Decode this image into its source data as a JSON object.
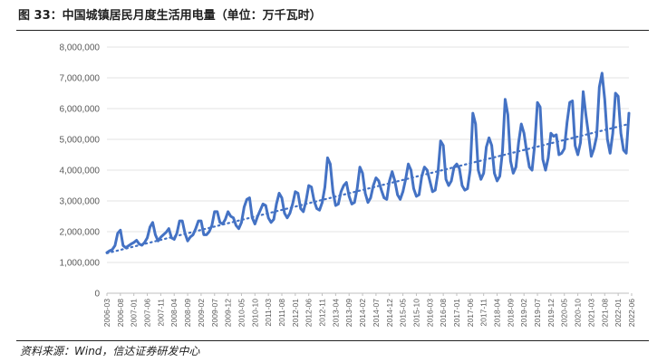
{
  "figure": {
    "title": "图 33：中国城镇居民月度生活用电量（单位：万千瓦时）",
    "source": "资料来源：Wind，信达证券研发中心"
  },
  "chart_data": {
    "type": "line",
    "title": "",
    "xlabel": "",
    "ylabel": "",
    "ylim": [
      0,
      8000000
    ],
    "y_ticks": [
      0,
      1000000,
      2000000,
      3000000,
      4000000,
      5000000,
      6000000,
      7000000,
      8000000
    ],
    "y_tick_labels": [
      "0",
      "1,000,000",
      "2,000,000",
      "3,000,000",
      "4,000,000",
      "5,000,000",
      "6,000,000",
      "7,000,000",
      "8,000,000"
    ],
    "x_tick_labels": [
      "2006-03",
      "2006-08",
      "2007-01",
      "2007-06",
      "2007-11",
      "2008-04",
      "2008-09",
      "2009-02",
      "2009-07",
      "2009-12",
      "2010-05",
      "2010-10",
      "2011-03",
      "2011-08",
      "2012-01",
      "2012-06",
      "2012-11",
      "2013-04",
      "2013-09",
      "2014-02",
      "2014-07",
      "2014-12",
      "2015-05",
      "2015-10",
      "2016-03",
      "2016-08",
      "2017-01",
      "2017-06",
      "2017-11",
      "2018-04",
      "2018-09",
      "2019-02",
      "2019-07",
      "2019-12",
      "2020-05",
      "2020-10",
      "2021-03",
      "2021-08",
      "2022-01",
      "2022-06"
    ],
    "grid": "horizontal",
    "legend": "none",
    "series": [
      {
        "style": "solid",
        "color": "#4472C4",
        "x_start": "2006-03",
        "frequency": "monthly",
        "values": [
          1320000,
          1380000,
          1420000,
          1550000,
          1950000,
          2050000,
          1550000,
          1480000,
          1540000,
          1600000,
          1650000,
          1720000,
          1600000,
          1560000,
          1650000,
          1800000,
          2150000,
          2300000,
          1900000,
          1700000,
          1820000,
          1900000,
          1980000,
          2100000,
          1800000,
          1750000,
          1950000,
          2350000,
          2350000,
          1950000,
          1700000,
          1830000,
          1900000,
          2100000,
          2350000,
          2350000,
          1900000,
          1900000,
          2000000,
          2200000,
          2650000,
          2650000,
          2300000,
          2250000,
          2400000,
          2650000,
          2500000,
          2450000,
          2200000,
          2100000,
          2300000,
          2800000,
          3050000,
          3100000,
          2450000,
          2250000,
          2500000,
          2700000,
          2900000,
          2850000,
          2450000,
          2300000,
          2400000,
          2900000,
          3250000,
          3100000,
          2600000,
          2450000,
          2600000,
          2900000,
          3300000,
          3250000,
          2750000,
          2650000,
          3000000,
          3500000,
          3450000,
          3000000,
          2750000,
          2700000,
          2950000,
          3450000,
          4400000,
          4200000,
          3300000,
          2850000,
          2900000,
          3300000,
          3500000,
          3600000,
          3150000,
          2900000,
          2950000,
          3400000,
          4100000,
          3900000,
          3250000,
          2950000,
          3100000,
          3500000,
          3750000,
          3650000,
          3350000,
          3100000,
          3050000,
          3650000,
          3950000,
          3650000,
          3200000,
          3050000,
          3300000,
          3700000,
          4200000,
          4000000,
          3400000,
          3150000,
          3200000,
          3800000,
          4100000,
          4000000,
          3650000,
          3300000,
          3350000,
          3900000,
          4950000,
          4800000,
          3700000,
          3500000,
          3650000,
          4100000,
          4200000,
          4050000,
          3500000,
          3350000,
          3400000,
          4000000,
          5850000,
          5500000,
          4000000,
          3700000,
          3900000,
          4750000,
          5050000,
          4800000,
          3900000,
          3650000,
          3800000,
          4600000,
          6300000,
          5800000,
          4300000,
          3900000,
          4100000,
          4900000,
          5500000,
          5200000,
          4600000,
          4100000,
          4000000,
          4850000,
          6200000,
          6050000,
          4350000,
          4000000,
          4400000,
          5200000,
          5100000,
          5150000,
          4500000,
          4550000,
          4700000,
          5550000,
          6200000,
          6250000,
          4800000,
          4500000,
          4900000,
          6550000,
          5800000,
          5150000,
          4450000,
          4700000,
          5100000,
          6700000,
          7150000,
          6300000,
          5000000,
          4550000,
          5200000,
          6500000,
          6400000,
          5200000,
          4650000,
          4550000,
          5850000
        ]
      },
      {
        "style": "dotted",
        "name": "",
        "color": "#4472C4",
        "kind": "linear-trend",
        "start_value": 1300000,
        "end_value": 5500000
      }
    ]
  }
}
